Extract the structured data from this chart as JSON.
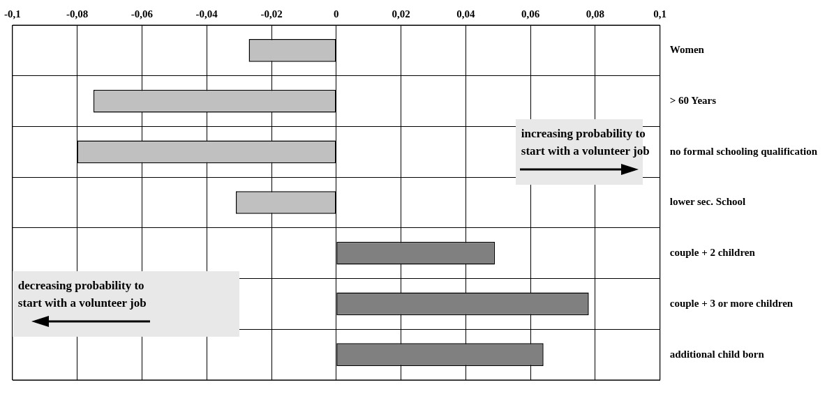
{
  "chart_data": {
    "type": "bar",
    "orientation": "horizontal",
    "categories": [
      "Women",
      "> 60 Years",
      "no formal schooling qualification",
      "lower sec. School",
      "couple + 2 children",
      "couple + 3 or more children",
      "additional child born"
    ],
    "values": [
      -0.027,
      -0.075,
      -0.08,
      -0.031,
      0.049,
      0.078,
      0.064
    ],
    "colors": [
      "#c0c0c0",
      "#c0c0c0",
      "#c0c0c0",
      "#c0c0c0",
      "#808080",
      "#808080",
      "#808080"
    ],
    "xlim": [
      -0.1,
      0.1
    ],
    "xticks": [
      {
        "value": -0.1,
        "label": "-0,1"
      },
      {
        "value": -0.08,
        "label": "-0,08"
      },
      {
        "value": -0.06,
        "label": "-0,06"
      },
      {
        "value": -0.04,
        "label": "-0,04"
      },
      {
        "value": -0.02,
        "label": "-0,02"
      },
      0,
      {
        "value": 0.02,
        "label": "0,02"
      },
      {
        "value": 0.04,
        "label": "0,04"
      },
      {
        "value": 0.06,
        "label": "0,06"
      },
      {
        "value": 0.08,
        "label": "0,08"
      },
      {
        "value": 0.1,
        "label": "0,1"
      }
    ],
    "grid": true,
    "annotations": [
      "increasing probability to start with a volunteer job",
      "decreasing probability to start with a volunteer job"
    ]
  }
}
